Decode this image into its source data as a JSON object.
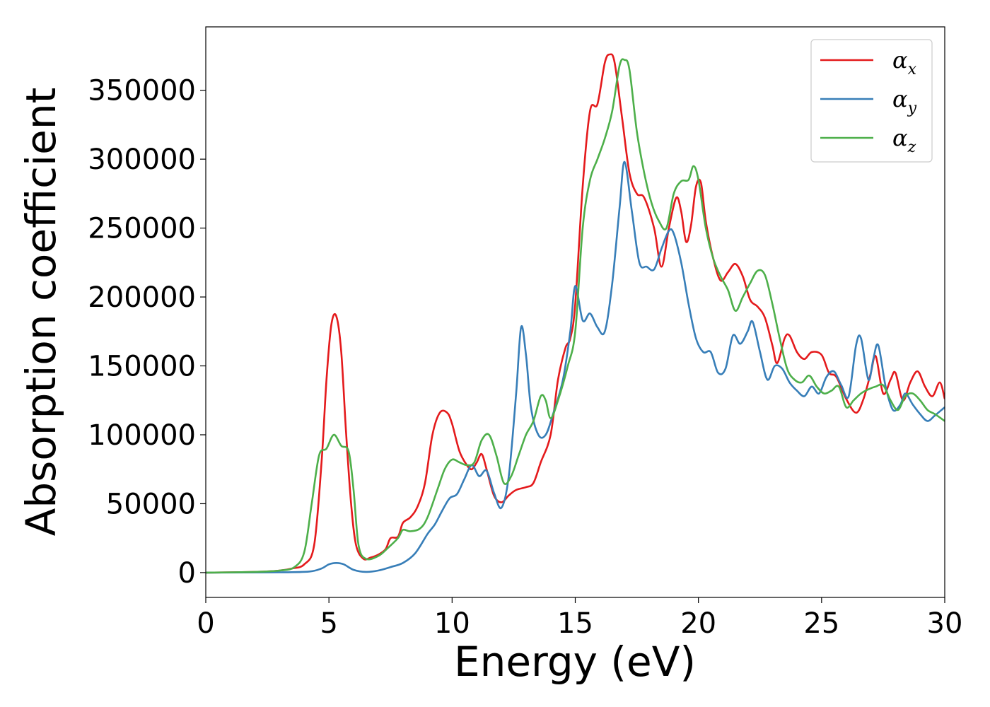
{
  "chart_data": {
    "type": "line",
    "title": "",
    "xlabel": "Energy (eV)",
    "ylabel": "Absorption coefficient",
    "xlim": [
      0,
      30
    ],
    "ylim": [
      -18000,
      396000
    ],
    "xticks": [
      0,
      5,
      10,
      15,
      20,
      25,
      30
    ],
    "yticks": [
      0,
      50000,
      100000,
      150000,
      200000,
      250000,
      300000,
      350000
    ],
    "grid": false,
    "legend_position": "top-right",
    "series": [
      {
        "name": "α",
        "subscript": "x",
        "color": "#e41a1c",
        "points": [
          [
            0,
            0
          ],
          [
            2,
            500
          ],
          [
            3,
            1500
          ],
          [
            3.5,
            3000
          ],
          [
            4,
            6000
          ],
          [
            4.4,
            20000
          ],
          [
            4.7,
            80000
          ],
          [
            4.9,
            140000
          ],
          [
            5.1,
            180000
          ],
          [
            5.3,
            186000
          ],
          [
            5.5,
            160000
          ],
          [
            5.7,
            100000
          ],
          [
            5.9,
            50000
          ],
          [
            6.1,
            20000
          ],
          [
            6.4,
            10000
          ],
          [
            6.7,
            11000
          ],
          [
            7.0,
            13000
          ],
          [
            7.3,
            17000
          ],
          [
            7.5,
            25000
          ],
          [
            7.8,
            26000
          ],
          [
            8.0,
            36000
          ],
          [
            8.3,
            40000
          ],
          [
            8.6,
            48000
          ],
          [
            8.9,
            65000
          ],
          [
            9.2,
            100000
          ],
          [
            9.5,
            116000
          ],
          [
            9.8,
            116000
          ],
          [
            10.0,
            108000
          ],
          [
            10.3,
            88000
          ],
          [
            10.6,
            78000
          ],
          [
            10.8,
            75000
          ],
          [
            11.0,
            80000
          ],
          [
            11.2,
            86000
          ],
          [
            11.4,
            75000
          ],
          [
            11.7,
            56000
          ],
          [
            12.0,
            51000
          ],
          [
            12.3,
            56000
          ],
          [
            12.6,
            60000
          ],
          [
            13.0,
            62000
          ],
          [
            13.3,
            65000
          ],
          [
            13.6,
            80000
          ],
          [
            14.0,
            100000
          ],
          [
            14.3,
            140000
          ],
          [
            14.6,
            163000
          ],
          [
            14.8,
            170000
          ],
          [
            15.0,
            195000
          ],
          [
            15.3,
            280000
          ],
          [
            15.6,
            335000
          ],
          [
            15.9,
            340000
          ],
          [
            16.2,
            370000
          ],
          [
            16.4,
            376000
          ],
          [
            16.6,
            370000
          ],
          [
            16.9,
            330000
          ],
          [
            17.2,
            290000
          ],
          [
            17.5,
            275000
          ],
          [
            17.8,
            272000
          ],
          [
            18.2,
            250000
          ],
          [
            18.5,
            222000
          ],
          [
            18.8,
            250000
          ],
          [
            19.1,
            272000
          ],
          [
            19.3,
            262000
          ],
          [
            19.5,
            240000
          ],
          [
            19.7,
            252000
          ],
          [
            19.9,
            280000
          ],
          [
            20.1,
            283000
          ],
          [
            20.3,
            255000
          ],
          [
            20.6,
            228000
          ],
          [
            20.9,
            212000
          ],
          [
            21.2,
            218000
          ],
          [
            21.5,
            224000
          ],
          [
            21.8,
            215000
          ],
          [
            22.1,
            198000
          ],
          [
            22.4,
            193000
          ],
          [
            22.7,
            185000
          ],
          [
            23.0,
            165000
          ],
          [
            23.2,
            152000
          ],
          [
            23.5,
            170000
          ],
          [
            23.7,
            172000
          ],
          [
            24.0,
            160000
          ],
          [
            24.3,
            155000
          ],
          [
            24.6,
            160000
          ],
          [
            25.0,
            158000
          ],
          [
            25.3,
            145000
          ],
          [
            25.6,
            142000
          ],
          [
            26.0,
            126000
          ],
          [
            26.4,
            116000
          ],
          [
            26.7,
            126000
          ],
          [
            27.0,
            145000
          ],
          [
            27.2,
            157000
          ],
          [
            27.5,
            130000
          ],
          [
            27.8,
            140000
          ],
          [
            28.0,
            145000
          ],
          [
            28.3,
            125000
          ],
          [
            28.6,
            138000
          ],
          [
            28.9,
            146000
          ],
          [
            29.2,
            135000
          ],
          [
            29.5,
            128000
          ],
          [
            29.8,
            138000
          ],
          [
            30.0,
            126000
          ]
        ]
      },
      {
        "name": "α",
        "subscript": "y",
        "color": "#377eb8",
        "points": [
          [
            0,
            0
          ],
          [
            3,
            200
          ],
          [
            4.2,
            800
          ],
          [
            4.7,
            3000
          ],
          [
            5.0,
            6000
          ],
          [
            5.3,
            7000
          ],
          [
            5.6,
            6000
          ],
          [
            6.0,
            2000
          ],
          [
            6.5,
            500
          ],
          [
            7.0,
            1500
          ],
          [
            7.5,
            4000
          ],
          [
            8.0,
            7000
          ],
          [
            8.5,
            14000
          ],
          [
            9.0,
            28000
          ],
          [
            9.3,
            35000
          ],
          [
            9.6,
            45000
          ],
          [
            9.9,
            54000
          ],
          [
            10.2,
            57000
          ],
          [
            10.5,
            68000
          ],
          [
            10.8,
            78000
          ],
          [
            11.1,
            70000
          ],
          [
            11.4,
            74000
          ],
          [
            11.7,
            58000
          ],
          [
            12.0,
            47000
          ],
          [
            12.3,
            70000
          ],
          [
            12.6,
            130000
          ],
          [
            12.8,
            178000
          ],
          [
            13.0,
            158000
          ],
          [
            13.2,
            120000
          ],
          [
            13.5,
            100000
          ],
          [
            13.8,
            100000
          ],
          [
            14.1,
            115000
          ],
          [
            14.5,
            140000
          ],
          [
            14.8,
            175000
          ],
          [
            15.0,
            208000
          ],
          [
            15.3,
            183000
          ],
          [
            15.6,
            188000
          ],
          [
            15.9,
            178000
          ],
          [
            16.2,
            175000
          ],
          [
            16.5,
            210000
          ],
          [
            16.8,
            265000
          ],
          [
            17.0,
            298000
          ],
          [
            17.3,
            262000
          ],
          [
            17.6,
            225000
          ],
          [
            17.9,
            222000
          ],
          [
            18.2,
            220000
          ],
          [
            18.5,
            235000
          ],
          [
            18.8,
            248000
          ],
          [
            19.0,
            246000
          ],
          [
            19.3,
            225000
          ],
          [
            19.6,
            195000
          ],
          [
            19.9,
            170000
          ],
          [
            20.2,
            160000
          ],
          [
            20.5,
            160000
          ],
          [
            20.8,
            145000
          ],
          [
            21.1,
            148000
          ],
          [
            21.4,
            172000
          ],
          [
            21.7,
            166000
          ],
          [
            22.0,
            175000
          ],
          [
            22.2,
            182000
          ],
          [
            22.5,
            160000
          ],
          [
            22.8,
            140000
          ],
          [
            23.1,
            150000
          ],
          [
            23.4,
            148000
          ],
          [
            23.7,
            138000
          ],
          [
            24.0,
            132000
          ],
          [
            24.3,
            128000
          ],
          [
            24.6,
            135000
          ],
          [
            24.9,
            130000
          ],
          [
            25.2,
            142000
          ],
          [
            25.5,
            146000
          ],
          [
            25.8,
            136000
          ],
          [
            26.1,
            128000
          ],
          [
            26.4,
            165000
          ],
          [
            26.6,
            170000
          ],
          [
            26.9,
            140000
          ],
          [
            27.1,
            155000
          ],
          [
            27.3,
            165000
          ],
          [
            27.6,
            135000
          ],
          [
            27.9,
            118000
          ],
          [
            28.2,
            122000
          ],
          [
            28.4,
            130000
          ],
          [
            28.7,
            122000
          ],
          [
            29.0,
            115000
          ],
          [
            29.3,
            110000
          ],
          [
            29.6,
            114000
          ],
          [
            30.0,
            120000
          ]
        ]
      },
      {
        "name": "α",
        "subscript": "z",
        "color": "#4daf4a",
        "points": [
          [
            0,
            0
          ],
          [
            2,
            500
          ],
          [
            3,
            1500
          ],
          [
            3.6,
            4000
          ],
          [
            4.0,
            15000
          ],
          [
            4.3,
            50000
          ],
          [
            4.6,
            85000
          ],
          [
            4.9,
            90000
          ],
          [
            5.2,
            100000
          ],
          [
            5.5,
            92000
          ],
          [
            5.8,
            88000
          ],
          [
            6.0,
            60000
          ],
          [
            6.2,
            20000
          ],
          [
            6.5,
            10000
          ],
          [
            7.0,
            12000
          ],
          [
            7.4,
            18000
          ],
          [
            7.8,
            25000
          ],
          [
            8.0,
            31000
          ],
          [
            8.3,
            30000
          ],
          [
            8.7,
            32000
          ],
          [
            9.0,
            40000
          ],
          [
            9.4,
            60000
          ],
          [
            9.7,
            75000
          ],
          [
            10.0,
            82000
          ],
          [
            10.3,
            80000
          ],
          [
            10.6,
            78000
          ],
          [
            10.9,
            80000
          ],
          [
            11.2,
            96000
          ],
          [
            11.5,
            100000
          ],
          [
            11.8,
            85000
          ],
          [
            12.1,
            65000
          ],
          [
            12.4,
            70000
          ],
          [
            12.7,
            85000
          ],
          [
            13.0,
            100000
          ],
          [
            13.3,
            110000
          ],
          [
            13.6,
            128000
          ],
          [
            13.8,
            125000
          ],
          [
            14.0,
            112000
          ],
          [
            14.3,
            125000
          ],
          [
            14.7,
            150000
          ],
          [
            15.0,
            175000
          ],
          [
            15.3,
            250000
          ],
          [
            15.6,
            285000
          ],
          [
            15.9,
            300000
          ],
          [
            16.2,
            315000
          ],
          [
            16.5,
            335000
          ],
          [
            16.8,
            368000
          ],
          [
            17.0,
            372000
          ],
          [
            17.2,
            365000
          ],
          [
            17.5,
            320000
          ],
          [
            17.8,
            290000
          ],
          [
            18.1,
            268000
          ],
          [
            18.4,
            255000
          ],
          [
            18.7,
            250000
          ],
          [
            19.0,
            275000
          ],
          [
            19.3,
            284000
          ],
          [
            19.6,
            285000
          ],
          [
            19.8,
            295000
          ],
          [
            20.0,
            285000
          ],
          [
            20.3,
            250000
          ],
          [
            20.6,
            228000
          ],
          [
            20.9,
            215000
          ],
          [
            21.2,
            205000
          ],
          [
            21.5,
            190000
          ],
          [
            21.8,
            200000
          ],
          [
            22.1,
            210000
          ],
          [
            22.4,
            219000
          ],
          [
            22.7,
            216000
          ],
          [
            23.0,
            195000
          ],
          [
            23.3,
            170000
          ],
          [
            23.6,
            148000
          ],
          [
            23.9,
            140000
          ],
          [
            24.2,
            138000
          ],
          [
            24.5,
            143000
          ],
          [
            24.8,
            135000
          ],
          [
            25.1,
            130000
          ],
          [
            25.4,
            132000
          ],
          [
            25.7,
            135000
          ],
          [
            26.0,
            120000
          ],
          [
            26.3,
            125000
          ],
          [
            26.6,
            130000
          ],
          [
            26.9,
            133000
          ],
          [
            27.2,
            135000
          ],
          [
            27.5,
            136000
          ],
          [
            27.8,
            125000
          ],
          [
            28.1,
            118000
          ],
          [
            28.4,
            128000
          ],
          [
            28.7,
            130000
          ],
          [
            29.0,
            125000
          ],
          [
            29.3,
            118000
          ],
          [
            29.6,
            115000
          ],
          [
            30.0,
            110000
          ]
        ]
      }
    ]
  }
}
